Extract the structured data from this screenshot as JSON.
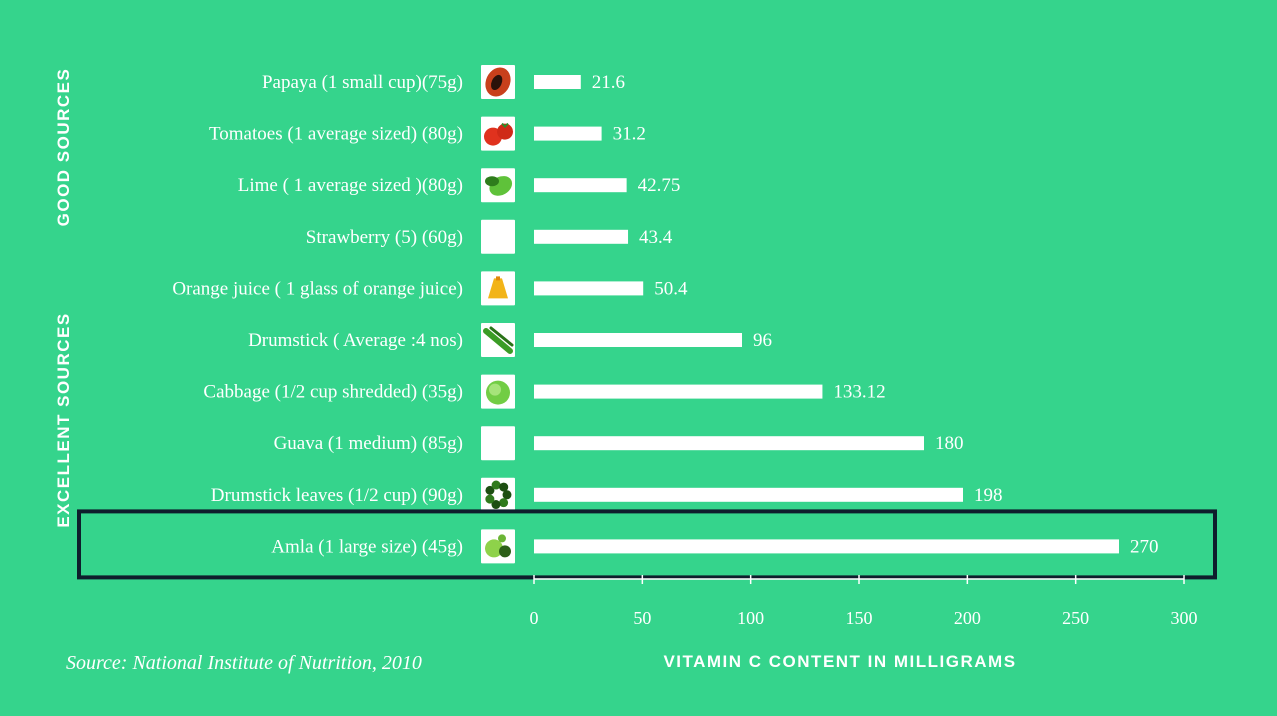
{
  "chart_data": {
    "type": "bar",
    "orientation": "horizontal",
    "categories": [
      "Papaya (1 small cup)(75g)",
      "Tomatoes (1 average sized) (80g)",
      "Lime ( 1 average sized )(80g)",
      "Strawberry (5) (60g)",
      "Orange juice ( 1 glass of orange juice)",
      "Drumstick ( Average :4 nos)",
      "Cabbage (1/2 cup shredded) (35g)",
      "Guava (1 medium) (85g)",
      "Drumstick leaves (1/2 cup) (90g)",
      "Amla (1 large size) (45g)"
    ],
    "values": [
      21.6,
      31.2,
      42.75,
      43.4,
      50.4,
      96,
      133.12,
      180,
      198,
      270
    ],
    "value_labels": [
      "21.6",
      "31.2",
      "42.75",
      "43.4",
      "50.4",
      "96",
      "133.12",
      "180",
      "198",
      "270"
    ],
    "icons": [
      "papaya-icon",
      "tomato-icon",
      "lime-icon",
      "strawberry-icon",
      "orange-juice-icon",
      "drumstick-icon",
      "cabbage-icon",
      "guava-icon",
      "drumstick-leaves-icon",
      "amla-icon"
    ],
    "groups": [
      {
        "label": "GOOD SOURCES",
        "from": 0,
        "to": 3
      },
      {
        "label": "EXCELLENT SOURCES",
        "from": 4,
        "to": 9
      }
    ],
    "highlight_index": 9,
    "xlabel": "VITAMIN C CONTENT IN MILLIGRAMS",
    "xlim": [
      0,
      300
    ],
    "xticks": [
      0,
      50,
      100,
      150,
      200,
      250,
      300
    ],
    "grid": false,
    "source": "Source:  National Institute of Nutrition, 2010",
    "colors": {
      "background": "#35d48c",
      "bar": "#ffffff",
      "text": "#ffffff",
      "highlight_border": "#0e1e2c"
    }
  }
}
